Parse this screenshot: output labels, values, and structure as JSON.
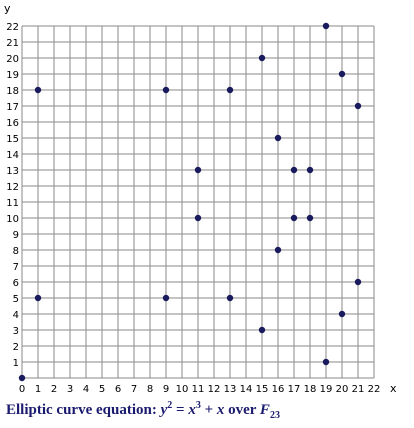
{
  "chart_data": {
    "type": "scatter",
    "xlabel": "x",
    "ylabel": "y",
    "xlim": [
      0,
      22
    ],
    "ylim": [
      0,
      22
    ],
    "grid": true,
    "x_ticks": [
      0,
      1,
      2,
      3,
      4,
      5,
      6,
      7,
      8,
      9,
      10,
      11,
      12,
      13,
      14,
      15,
      16,
      17,
      18,
      19,
      20,
      21,
      22
    ],
    "y_ticks": [
      0,
      1,
      2,
      3,
      4,
      5,
      6,
      7,
      8,
      9,
      10,
      11,
      12,
      13,
      14,
      15,
      16,
      17,
      18,
      19,
      20,
      21,
      22
    ],
    "points": [
      [
        0,
        0
      ],
      [
        1,
        5
      ],
      [
        1,
        18
      ],
      [
        9,
        5
      ],
      [
        9,
        18
      ],
      [
        11,
        10
      ],
      [
        11,
        13
      ],
      [
        13,
        5
      ],
      [
        13,
        18
      ],
      [
        15,
        3
      ],
      [
        15,
        20
      ],
      [
        16,
        8
      ],
      [
        16,
        15
      ],
      [
        17,
        10
      ],
      [
        17,
        13
      ],
      [
        18,
        10
      ],
      [
        18,
        13
      ],
      [
        19,
        1
      ],
      [
        19,
        22
      ],
      [
        20,
        4
      ],
      [
        20,
        19
      ],
      [
        21,
        6
      ],
      [
        21,
        17
      ]
    ],
    "point_color": "#1a1a5e",
    "grid_color": "#8a8a8a"
  },
  "caption": {
    "prefix": "Elliptic curve equation: ",
    "lhs_var": "y",
    "lhs_exp": "2",
    "eq": " = ",
    "x1": "x",
    "x1_exp": "3",
    "plus": " + ",
    "x2": "x",
    "over": " over ",
    "field": "F",
    "field_sub": "23"
  }
}
